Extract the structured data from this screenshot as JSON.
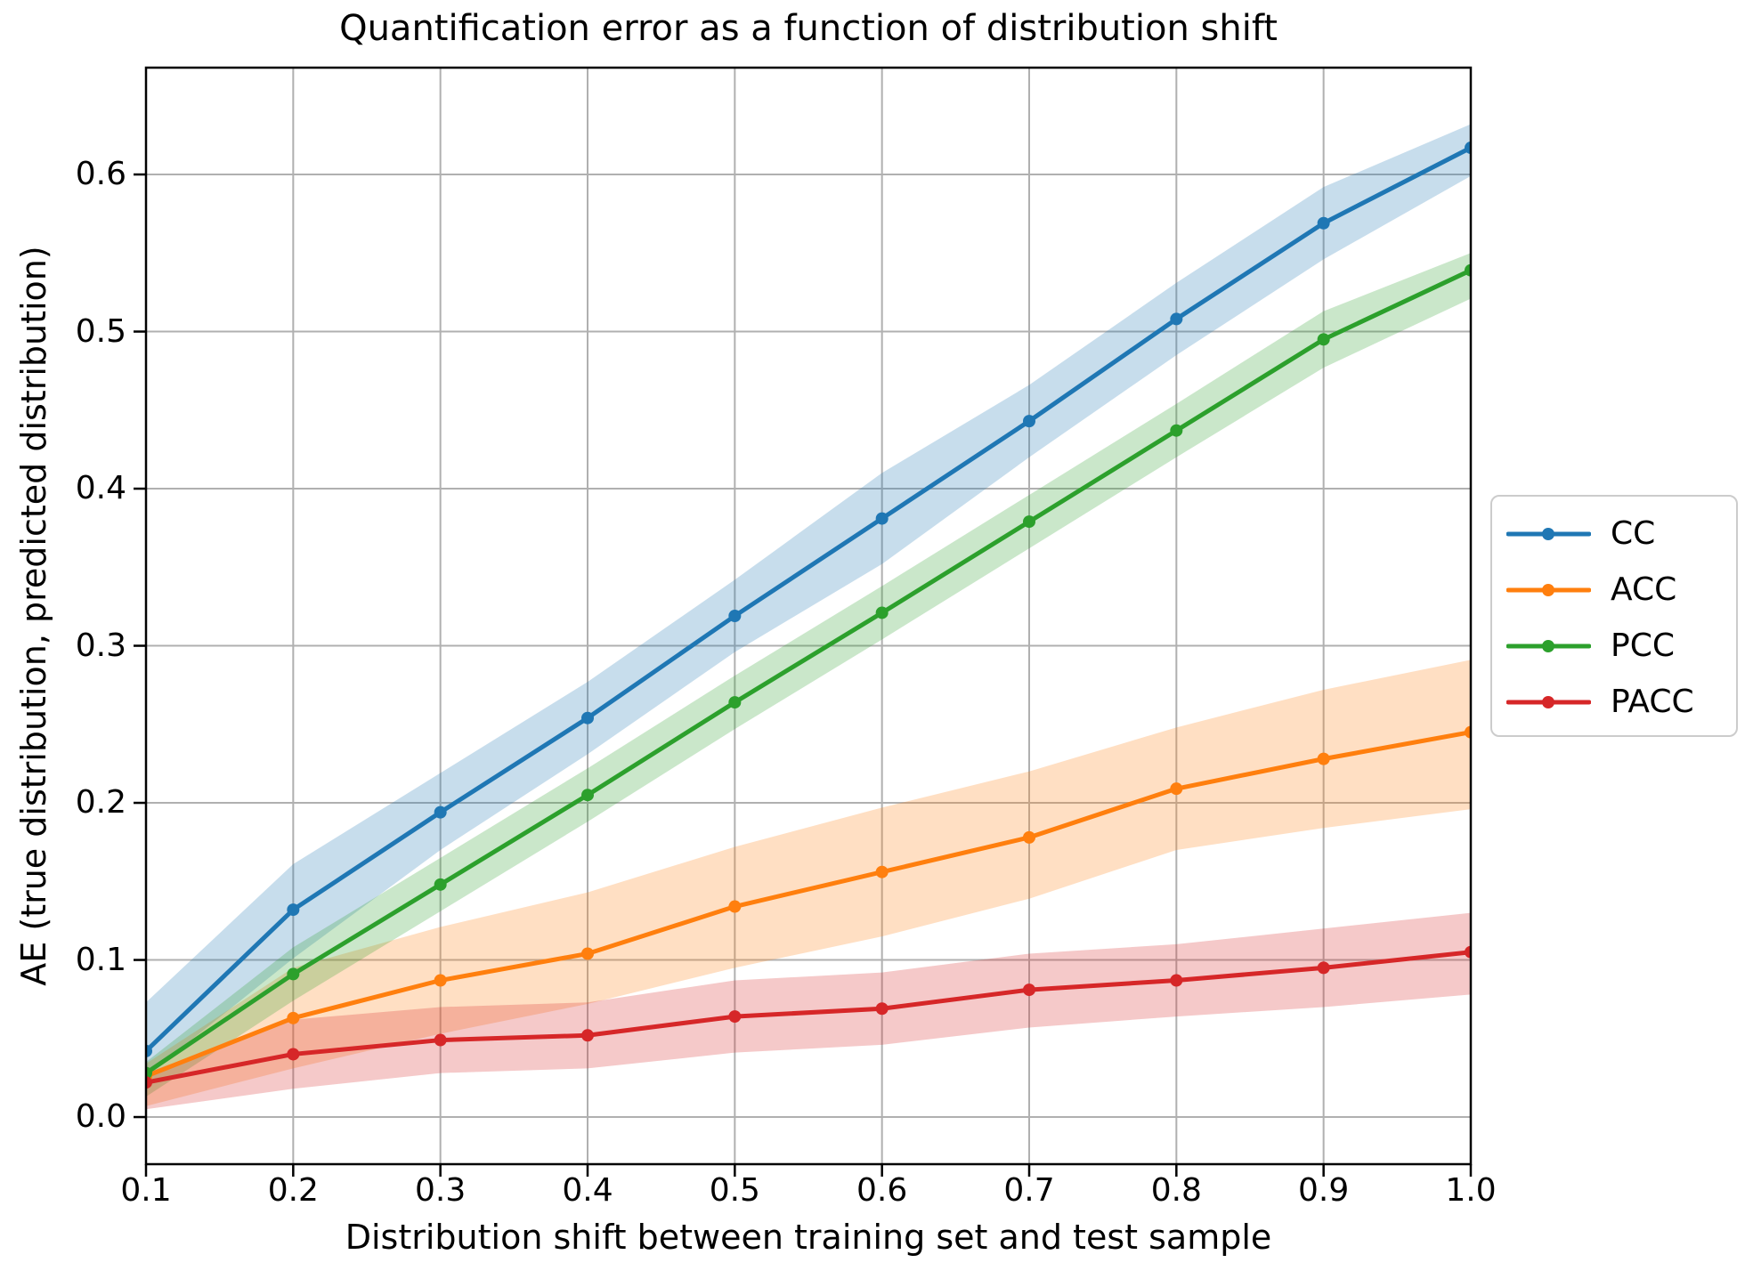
{
  "chart_data": {
    "type": "line",
    "title": "Quantification error as a function of distribution shift",
    "xlabel": "Distribution shift between training set and test sample",
    "ylabel": "AE (true distribution, predicted distribution)",
    "grid": true,
    "grid_color": "#b0b0b0",
    "background_color": "#ffffff",
    "spine_color": "#000000",
    "band_alpha": 0.25,
    "legend_position": "outside-right",
    "xlim": [
      0.1,
      1.0
    ],
    "ylim": [
      -0.03,
      0.668
    ],
    "x": [
      0.1,
      0.2,
      0.3,
      0.4,
      0.5,
      0.6,
      0.7,
      0.8,
      0.9,
      1.0
    ],
    "x_tick_labels": [
      "0.1",
      "0.2",
      "0.3",
      "0.4",
      "0.5",
      "0.6",
      "0.7",
      "0.8",
      "0.9",
      "1.0"
    ],
    "y_ticks": [
      0.0,
      0.1,
      0.2,
      0.3,
      0.4,
      0.5,
      0.6
    ],
    "y_tick_labels": [
      "0.0",
      "0.1",
      "0.2",
      "0.3",
      "0.4",
      "0.5",
      "0.6"
    ],
    "series": [
      {
        "name": "CC",
        "color": "#1f77b4",
        "values": [
          0.042,
          0.132,
          0.194,
          0.254,
          0.319,
          0.381,
          0.443,
          0.508,
          0.569,
          0.617
        ],
        "band_lower": [
          0.026,
          0.101,
          0.17,
          0.231,
          0.296,
          0.352,
          0.42,
          0.485,
          0.546,
          0.599
        ],
        "band_upper": [
          0.073,
          0.161,
          0.219,
          0.277,
          0.342,
          0.41,
          0.466,
          0.531,
          0.592,
          0.632
        ]
      },
      {
        "name": "ACC",
        "color": "#ff7f0e",
        "values": [
          0.026,
          0.063,
          0.087,
          0.104,
          0.134,
          0.156,
          0.178,
          0.209,
          0.228,
          0.245
        ],
        "band_lower": [
          0.007,
          0.031,
          0.053,
          0.072,
          0.095,
          0.115,
          0.139,
          0.17,
          0.184,
          0.196
        ],
        "band_upper": [
          0.034,
          0.095,
          0.121,
          0.143,
          0.172,
          0.197,
          0.22,
          0.248,
          0.272,
          0.291
        ]
      },
      {
        "name": "PCC",
        "color": "#2ca02c",
        "values": [
          0.028,
          0.091,
          0.148,
          0.205,
          0.264,
          0.321,
          0.379,
          0.437,
          0.495,
          0.539
        ],
        "band_lower": [
          0.013,
          0.074,
          0.131,
          0.188,
          0.247,
          0.304,
          0.362,
          0.42,
          0.477,
          0.521
        ],
        "band_upper": [
          0.035,
          0.108,
          0.165,
          0.222,
          0.281,
          0.338,
          0.396,
          0.454,
          0.513,
          0.55
        ]
      },
      {
        "name": "PACC",
        "color": "#d62728",
        "values": [
          0.022,
          0.04,
          0.049,
          0.052,
          0.064,
          0.069,
          0.081,
          0.087,
          0.095,
          0.105
        ],
        "band_lower": [
          0.005,
          0.018,
          0.028,
          0.031,
          0.041,
          0.046,
          0.057,
          0.064,
          0.07,
          0.078
        ],
        "band_upper": [
          0.028,
          0.062,
          0.07,
          0.073,
          0.087,
          0.092,
          0.104,
          0.11,
          0.12,
          0.13
        ]
      }
    ]
  }
}
